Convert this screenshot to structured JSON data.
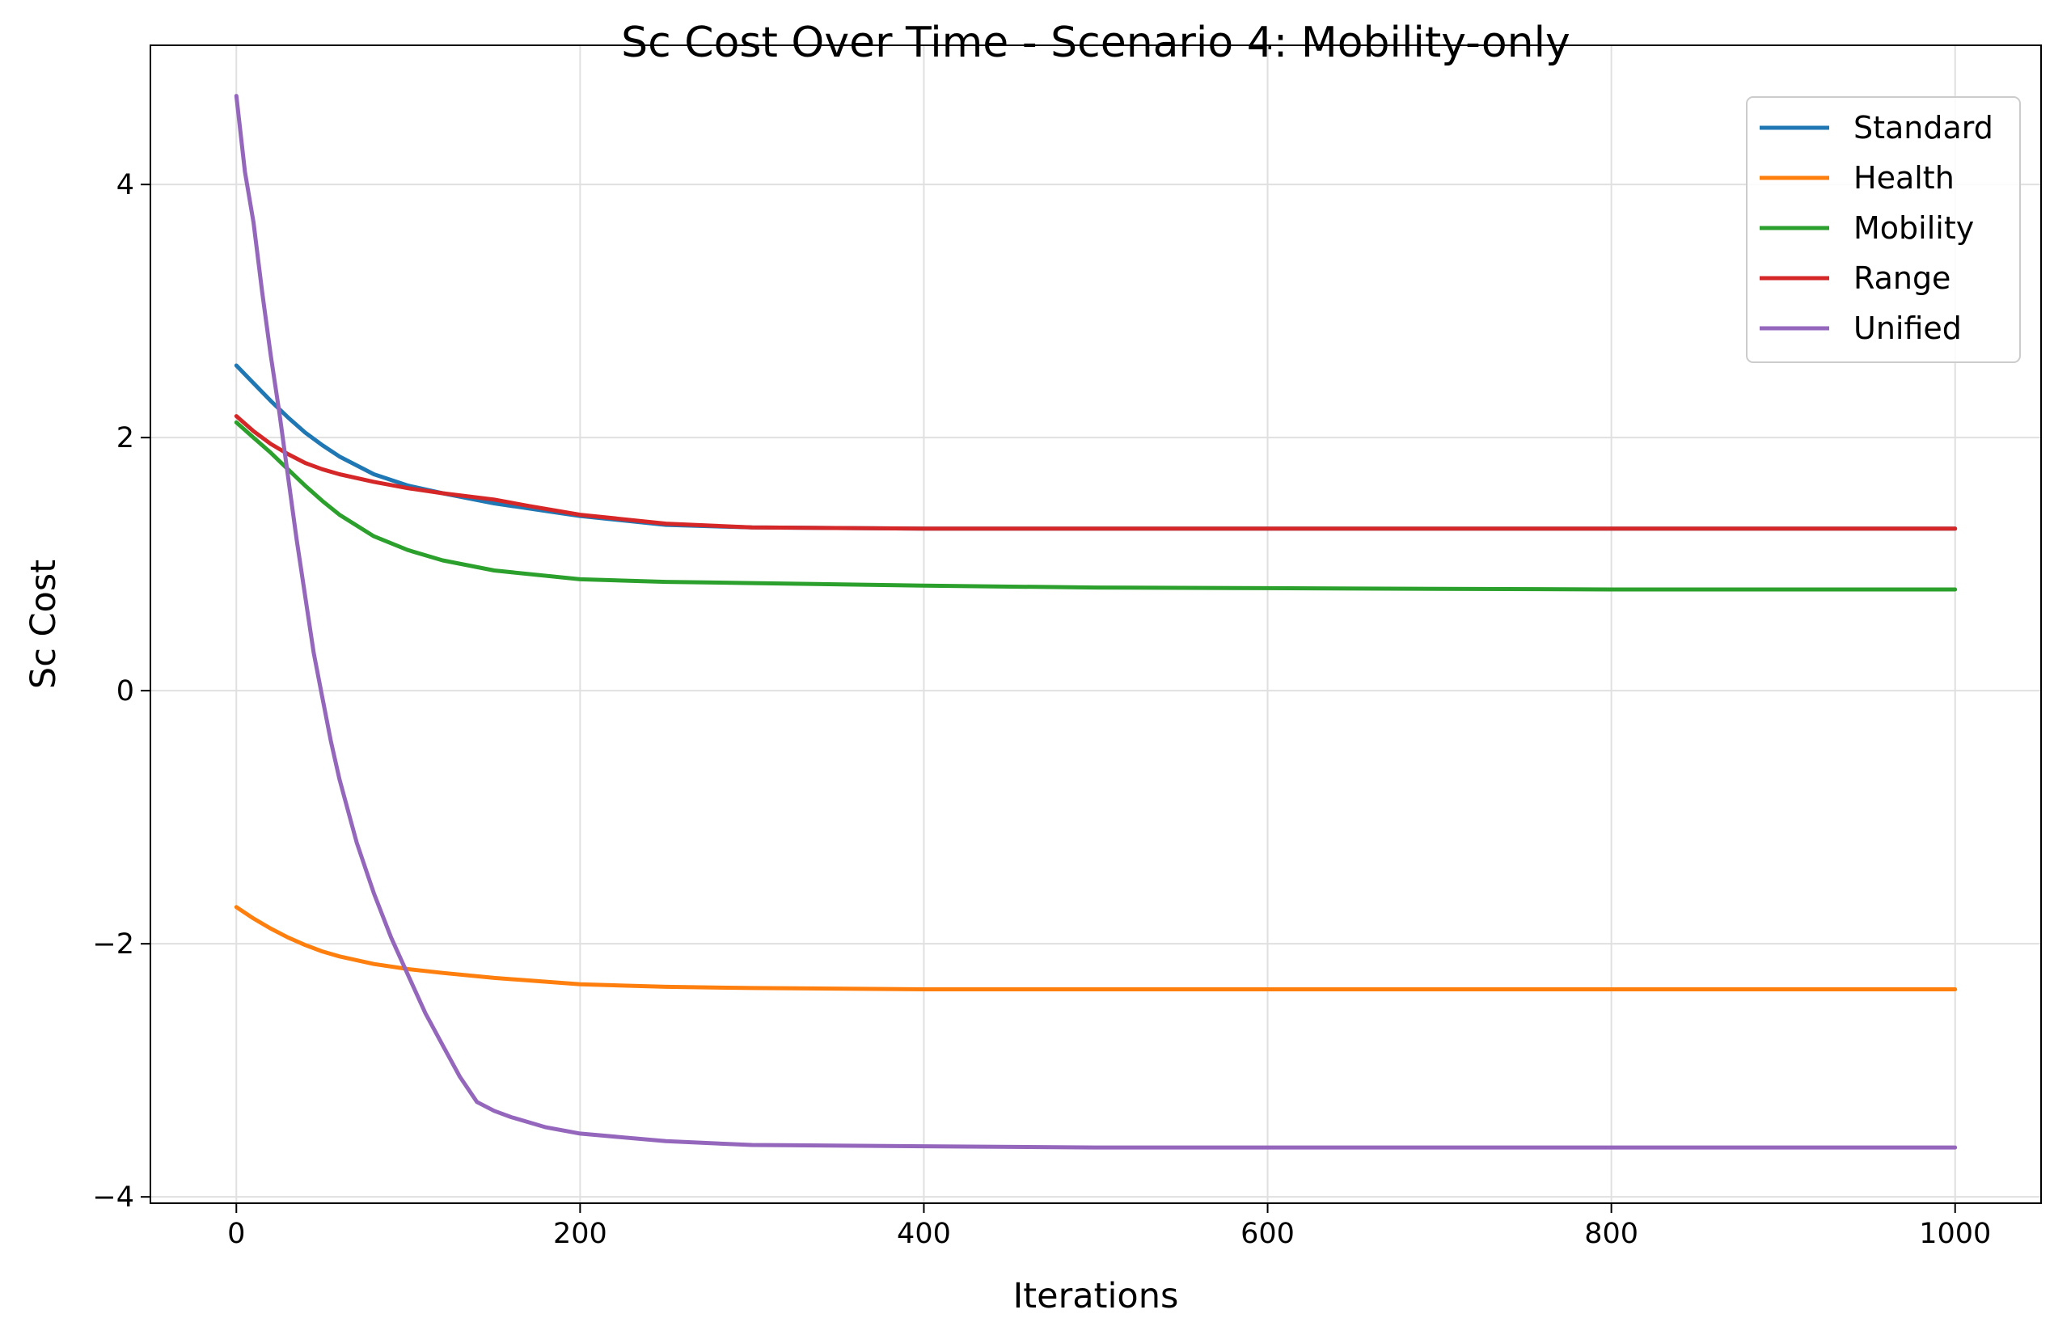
{
  "chart_data": {
    "type": "line",
    "title": "Sc Cost Over Time - Scenario 4: Mobility-only",
    "xlabel": "Iterations",
    "ylabel": "Sc Cost",
    "xlim": [
      -50,
      1050
    ],
    "ylim": [
      -4.05,
      5.1
    ],
    "xticks": [
      0,
      200,
      400,
      600,
      800,
      1000
    ],
    "yticks": [
      -4,
      -2,
      0,
      2,
      4
    ],
    "xtick_labels": [
      "0",
      "200",
      "400",
      "600",
      "800",
      "1000"
    ],
    "ytick_labels": [
      "−4",
      "−2",
      "0",
      "2",
      "4"
    ],
    "grid": true,
    "legend_position": "top-right",
    "series": [
      {
        "name": "Standard",
        "color": "#1f77b4",
        "x": [
          0,
          10,
          20,
          30,
          40,
          50,
          60,
          80,
          100,
          120,
          150,
          200,
          250,
          300,
          400,
          500,
          600,
          700,
          800,
          900,
          1000
        ],
        "y": [
          2.57,
          2.43,
          2.29,
          2.16,
          2.04,
          1.94,
          1.85,
          1.71,
          1.62,
          1.56,
          1.48,
          1.38,
          1.31,
          1.29,
          1.28,
          1.28,
          1.28,
          1.28,
          1.28,
          1.28,
          1.28
        ]
      },
      {
        "name": "Health",
        "color": "#ff7f0e",
        "x": [
          0,
          10,
          20,
          30,
          40,
          50,
          60,
          80,
          100,
          120,
          150,
          200,
          250,
          300,
          400,
          500,
          600,
          700,
          800,
          900,
          1000
        ],
        "y": [
          -1.71,
          -1.8,
          -1.88,
          -1.95,
          -2.01,
          -2.06,
          -2.1,
          -2.16,
          -2.2,
          -2.23,
          -2.27,
          -2.32,
          -2.34,
          -2.35,
          -2.36,
          -2.36,
          -2.36,
          -2.36,
          -2.36,
          -2.36,
          -2.36
        ]
      },
      {
        "name": "Mobility",
        "color": "#2ca02c",
        "x": [
          0,
          10,
          20,
          30,
          40,
          50,
          60,
          80,
          100,
          120,
          150,
          200,
          250,
          300,
          400,
          500,
          600,
          700,
          800,
          900,
          1000
        ],
        "y": [
          2.12,
          2.0,
          1.88,
          1.75,
          1.62,
          1.5,
          1.39,
          1.22,
          1.11,
          1.03,
          0.95,
          0.88,
          0.86,
          0.85,
          0.83,
          0.815,
          0.81,
          0.805,
          0.8,
          0.8,
          0.8
        ]
      },
      {
        "name": "Range",
        "color": "#d62728",
        "x": [
          0,
          10,
          20,
          30,
          40,
          50,
          60,
          80,
          100,
          120,
          150,
          170,
          200,
          250,
          300,
          400,
          500,
          600,
          700,
          800,
          900,
          1000
        ],
        "y": [
          2.17,
          2.05,
          1.95,
          1.87,
          1.8,
          1.75,
          1.71,
          1.65,
          1.6,
          1.56,
          1.51,
          1.46,
          1.39,
          1.32,
          1.29,
          1.28,
          1.28,
          1.28,
          1.28,
          1.28,
          1.28,
          1.28
        ]
      },
      {
        "name": "Unified",
        "color": "#9467bd",
        "x": [
          0,
          5,
          10,
          15,
          20,
          25,
          30,
          35,
          40,
          45,
          50,
          55,
          60,
          70,
          80,
          90,
          100,
          110,
          120,
          130,
          140,
          150,
          160,
          180,
          200,
          250,
          300,
          400,
          500,
          600,
          700,
          800,
          900,
          1000
        ],
        "y": [
          4.7,
          4.1,
          3.7,
          3.15,
          2.65,
          2.2,
          1.7,
          1.2,
          0.75,
          0.3,
          -0.05,
          -0.4,
          -0.7,
          -1.2,
          -1.6,
          -1.95,
          -2.25,
          -2.55,
          -2.8,
          -3.05,
          -3.25,
          -3.32,
          -3.37,
          -3.45,
          -3.5,
          -3.56,
          -3.59,
          -3.6,
          -3.61,
          -3.61,
          -3.61,
          -3.61,
          -3.61,
          -3.61
        ]
      }
    ]
  }
}
